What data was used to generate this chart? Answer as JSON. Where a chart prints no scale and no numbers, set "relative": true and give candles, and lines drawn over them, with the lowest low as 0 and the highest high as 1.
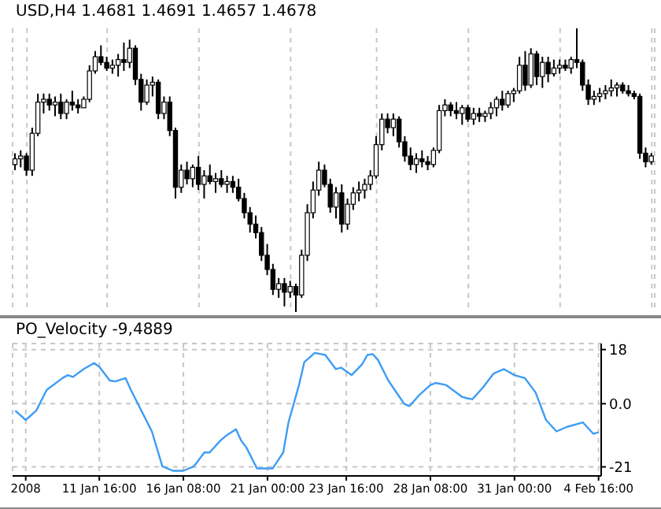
{
  "chart_data": [
    {
      "type": "candlestick",
      "title": "USD,H4 1.4681 1.4691 1.4657 1.4678",
      "relative": true,
      "grid": "x",
      "color": "#000000",
      "ohlc": [
        [
          0.52,
          0.56,
          0.5,
          0.54
        ],
        [
          0.54,
          0.57,
          0.51,
          0.55
        ],
        [
          0.55,
          0.56,
          0.48,
          0.5
        ],
        [
          0.5,
          0.65,
          0.48,
          0.63
        ],
        [
          0.63,
          0.77,
          0.62,
          0.74
        ],
        [
          0.74,
          0.77,
          0.7,
          0.75
        ],
        [
          0.75,
          0.77,
          0.71,
          0.73
        ],
        [
          0.73,
          0.76,
          0.69,
          0.74
        ],
        [
          0.74,
          0.77,
          0.68,
          0.7
        ],
        [
          0.7,
          0.75,
          0.68,
          0.74
        ],
        [
          0.74,
          0.78,
          0.71,
          0.73
        ],
        [
          0.73,
          0.75,
          0.7,
          0.72
        ],
        [
          0.72,
          0.76,
          0.72,
          0.75
        ],
        [
          0.75,
          0.87,
          0.74,
          0.85
        ],
        [
          0.85,
          0.92,
          0.84,
          0.9
        ],
        [
          0.9,
          0.94,
          0.87,
          0.88
        ],
        [
          0.88,
          0.9,
          0.85,
          0.86
        ],
        [
          0.86,
          0.89,
          0.84,
          0.87
        ],
        [
          0.87,
          0.91,
          0.83,
          0.89
        ],
        [
          0.89,
          0.95,
          0.85,
          0.88
        ],
        [
          0.88,
          0.96,
          0.86,
          0.93
        ],
        [
          0.93,
          0.94,
          0.8,
          0.82
        ],
        [
          0.82,
          0.84,
          0.71,
          0.74
        ],
        [
          0.74,
          0.82,
          0.73,
          0.8
        ],
        [
          0.8,
          0.83,
          0.76,
          0.81
        ],
        [
          0.81,
          0.82,
          0.68,
          0.7
        ],
        [
          0.7,
          0.76,
          0.68,
          0.74
        ],
        [
          0.74,
          0.76,
          0.62,
          0.64
        ],
        [
          0.64,
          0.65,
          0.4,
          0.44
        ],
        [
          0.44,
          0.52,
          0.42,
          0.5
        ],
        [
          0.5,
          0.53,
          0.45,
          0.47
        ],
        [
          0.47,
          0.52,
          0.44,
          0.51
        ],
        [
          0.51,
          0.55,
          0.43,
          0.45
        ],
        [
          0.45,
          0.5,
          0.4,
          0.48
        ],
        [
          0.48,
          0.52,
          0.45,
          0.46
        ],
        [
          0.46,
          0.49,
          0.42,
          0.47
        ],
        [
          0.47,
          0.5,
          0.44,
          0.45
        ],
        [
          0.45,
          0.48,
          0.42,
          0.46
        ],
        [
          0.46,
          0.48,
          0.42,
          0.44
        ],
        [
          0.44,
          0.47,
          0.39,
          0.4
        ],
        [
          0.4,
          0.42,
          0.33,
          0.35
        ],
        [
          0.35,
          0.37,
          0.28,
          0.31
        ],
        [
          0.31,
          0.34,
          0.26,
          0.28
        ],
        [
          0.28,
          0.3,
          0.18,
          0.2
        ],
        [
          0.2,
          0.24,
          0.13,
          0.15
        ],
        [
          0.15,
          0.17,
          0.06,
          0.08
        ],
        [
          0.08,
          0.12,
          0.05,
          0.1
        ],
        [
          0.1,
          0.12,
          0.02,
          0.07
        ],
        [
          0.07,
          0.11,
          0.05,
          0.09
        ],
        [
          0.09,
          0.1,
          0.0,
          0.06
        ],
        [
          0.06,
          0.22,
          0.05,
          0.2
        ],
        [
          0.2,
          0.38,
          0.18,
          0.35
        ],
        [
          0.35,
          0.46,
          0.33,
          0.43
        ],
        [
          0.43,
          0.53,
          0.41,
          0.5
        ],
        [
          0.5,
          0.52,
          0.44,
          0.45
        ],
        [
          0.45,
          0.47,
          0.35,
          0.37
        ],
        [
          0.37,
          0.44,
          0.33,
          0.42
        ],
        [
          0.42,
          0.45,
          0.28,
          0.31
        ],
        [
          0.31,
          0.4,
          0.29,
          0.38
        ],
        [
          0.38,
          0.44,
          0.36,
          0.42
        ],
        [
          0.42,
          0.46,
          0.39,
          0.43
        ],
        [
          0.43,
          0.47,
          0.4,
          0.45
        ],
        [
          0.45,
          0.5,
          0.43,
          0.48
        ],
        [
          0.48,
          0.62,
          0.47,
          0.59
        ],
        [
          0.59,
          0.7,
          0.57,
          0.68
        ],
        [
          0.68,
          0.7,
          0.63,
          0.65
        ],
        [
          0.65,
          0.7,
          0.62,
          0.68
        ],
        [
          0.68,
          0.69,
          0.58,
          0.6
        ],
        [
          0.6,
          0.62,
          0.53,
          0.55
        ],
        [
          0.55,
          0.58,
          0.5,
          0.52
        ],
        [
          0.52,
          0.56,
          0.49,
          0.54
        ],
        [
          0.54,
          0.57,
          0.51,
          0.53
        ],
        [
          0.53,
          0.55,
          0.5,
          0.52
        ],
        [
          0.52,
          0.58,
          0.51,
          0.57
        ],
        [
          0.57,
          0.73,
          0.56,
          0.71
        ],
        [
          0.71,
          0.75,
          0.69,
          0.73
        ],
        [
          0.73,
          0.74,
          0.69,
          0.71
        ],
        [
          0.71,
          0.74,
          0.68,
          0.7
        ],
        [
          0.7,
          0.73,
          0.66,
          0.72
        ],
        [
          0.72,
          0.73,
          0.67,
          0.68
        ],
        [
          0.68,
          0.72,
          0.66,
          0.7
        ],
        [
          0.7,
          0.72,
          0.67,
          0.69
        ],
        [
          0.69,
          0.71,
          0.67,
          0.7
        ],
        [
          0.7,
          0.74,
          0.68,
          0.72
        ],
        [
          0.72,
          0.76,
          0.69,
          0.75
        ],
        [
          0.75,
          0.78,
          0.71,
          0.73
        ],
        [
          0.73,
          0.78,
          0.72,
          0.77
        ],
        [
          0.77,
          0.79,
          0.74,
          0.78
        ],
        [
          0.78,
          0.9,
          0.77,
          0.87
        ],
        [
          0.87,
          0.92,
          0.78,
          0.8
        ],
        [
          0.8,
          0.93,
          0.79,
          0.91
        ],
        [
          0.91,
          0.92,
          0.8,
          0.83
        ],
        [
          0.83,
          0.9,
          0.79,
          0.88
        ],
        [
          0.88,
          0.9,
          0.81,
          0.84
        ],
        [
          0.84,
          0.89,
          0.83,
          0.86
        ],
        [
          0.86,
          0.89,
          0.84,
          0.87
        ],
        [
          0.87,
          0.89,
          0.85,
          0.86
        ],
        [
          0.86,
          0.9,
          0.84,
          0.89
        ],
        [
          0.89,
          1.0,
          0.86,
          0.88
        ],
        [
          0.88,
          0.89,
          0.78,
          0.8
        ],
        [
          0.8,
          0.82,
          0.73,
          0.75
        ],
        [
          0.75,
          0.78,
          0.73,
          0.76
        ],
        [
          0.76,
          0.79,
          0.74,
          0.77
        ],
        [
          0.77,
          0.8,
          0.75,
          0.78
        ],
        [
          0.78,
          0.82,
          0.76,
          0.79
        ],
        [
          0.79,
          0.81,
          0.76,
          0.8
        ],
        [
          0.8,
          0.81,
          0.77,
          0.78
        ],
        [
          0.78,
          0.8,
          0.76,
          0.77
        ],
        [
          0.77,
          0.78,
          0.75,
          0.76
        ],
        [
          0.76,
          0.77,
          0.54,
          0.56
        ],
        [
          0.56,
          0.58,
          0.51,
          0.53
        ],
        [
          0.53,
          0.56,
          0.52,
          0.55
        ]
      ]
    },
    {
      "type": "line",
      "title": "PO_Velocity -9,4889",
      "grid": true,
      "ylim": [
        -24,
        20
      ],
      "yticks": [
        18,
        {
          "value": 0,
          "label": "0.0"
        },
        -21
      ],
      "categories": [
        null,
        null,
        "2008",
        null,
        null,
        null,
        null,
        null,
        null,
        null,
        null,
        null,
        null,
        null,
        null,
        null,
        "11 Jan 16:00",
        null,
        null,
        null,
        null,
        null,
        null,
        null,
        null,
        null,
        null,
        null,
        null,
        null,
        null,
        null,
        "16 Jan 08:00",
        null,
        null,
        null,
        null,
        null,
        null,
        null,
        null,
        null,
        null,
        null,
        null,
        null,
        null,
        null,
        "21 Jan 00:00",
        null,
        null,
        null,
        null,
        null,
        null,
        null,
        null,
        null,
        null,
        null,
        null,
        null,
        null,
        "23 Jan 16:00",
        null,
        null,
        null,
        null,
        null,
        null,
        null,
        null,
        null,
        null,
        null,
        null,
        null,
        null,
        null,
        "28 Jan 08:00",
        null,
        null,
        null,
        null,
        null,
        null,
        null,
        null,
        null,
        null,
        null,
        null,
        null,
        null,
        null,
        "31 Jan 00:00",
        null,
        null,
        null,
        null,
        null,
        null,
        null,
        null,
        null,
        null,
        null,
        null,
        null,
        null,
        null,
        "4 Feb 16:00"
      ],
      "series": [
        {
          "color": "#3d9df5",
          "values": [
            -2.3,
            null,
            -5.4,
            null,
            -2.3,
            null,
            4.6,
            null,
            null,
            8.5,
            9.5,
            8.9,
            null,
            11.5,
            null,
            13.5,
            12.3,
            null,
            7.7,
            7.4,
            null,
            8.5,
            4.6,
            null,
            -2.3,
            null,
            -9.2,
            null,
            -20.8,
            null,
            -22.3,
            null,
            -22.3,
            null,
            -20.8,
            null,
            -16.2,
            -16.2,
            null,
            -12.3,
            -10.8,
            null,
            -8.5,
            -12.3,
            -14.6,
            null,
            -21.5,
            null,
            -21.5,
            -21.5,
            null,
            -16.2,
            -6.2,
            null,
            6.2,
            13.8,
            null,
            16.9,
            null,
            16.2,
            null,
            11.5,
            12,
            null,
            9.5,
            null,
            13.1,
            16.2,
            16.5,
            14.6,
            null,
            7.7,
            null,
            null,
            0,
            -0.8,
            null,
            3.1,
            null,
            6.2,
            6.9,
            null,
            6.2,
            null,
            null,
            2.3,
            1.8,
            1.5,
            null,
            5.4,
            null,
            10,
            null,
            11.5,
            null,
            9.5,
            null,
            8.5,
            null,
            3.8,
            null,
            -5.4,
            null,
            -9.2,
            null,
            -7.7,
            null,
            null,
            -6.2,
            null,
            -10,
            -9.5
          ]
        }
      ]
    }
  ]
}
